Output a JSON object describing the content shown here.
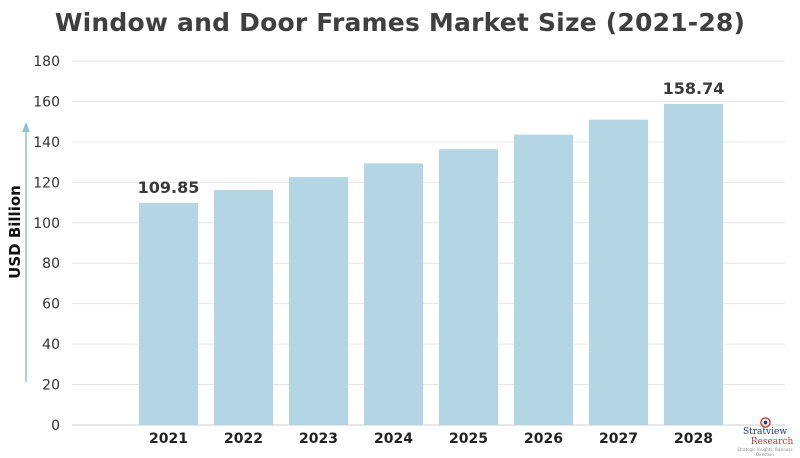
{
  "chart_data": {
    "type": "bar",
    "title": "Window and Door Frames Market Size (2021-28)",
    "ylabel": "USD Billion",
    "xlabel": "",
    "categories": [
      "2021",
      "2022",
      "2023",
      "2024",
      "2025",
      "2026",
      "2027",
      "2028"
    ],
    "values": [
      109.85,
      116.2,
      122.6,
      129.4,
      136.4,
      143.6,
      151.0,
      158.74
    ],
    "data_labels": [
      {
        "category": "2021",
        "text": "109.85"
      },
      {
        "category": "2028",
        "text": "158.74"
      }
    ],
    "ylim": [
      0,
      180
    ],
    "yticks": [
      "0",
      "20",
      "40",
      "60",
      "80",
      "100",
      "120",
      "140",
      "160",
      "180"
    ],
    "grid": true,
    "bar_color": "#b4d6e4",
    "grid_color": "#e6e6e6",
    "arrow_color": "#8fc0d8"
  },
  "logo": {
    "name": "Stratview",
    "sub": "Research",
    "tagline": "Strategic Insights, Business Direction"
  }
}
